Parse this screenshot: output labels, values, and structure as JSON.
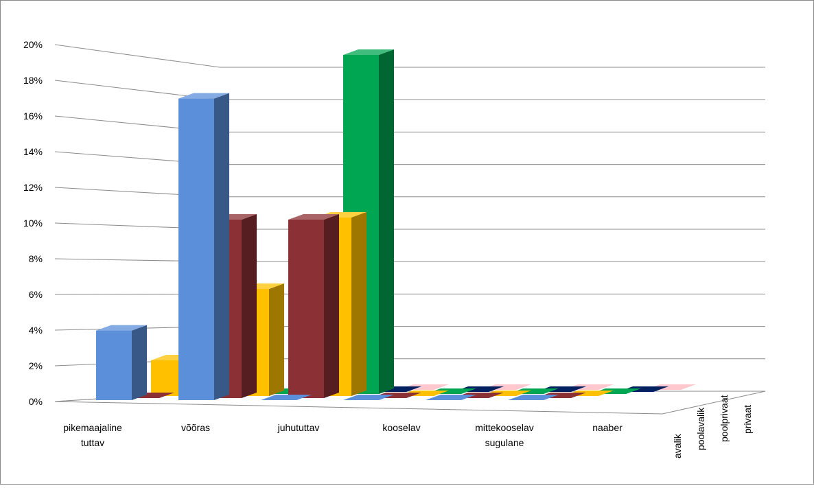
{
  "chart_data": {
    "type": "bar",
    "title": "",
    "xlabel": "",
    "ylabel": "",
    "ylim": [
      0,
      20
    ],
    "y_ticks": [
      "0%",
      "2%",
      "4%",
      "6%",
      "8%",
      "10%",
      "12%",
      "14%",
      "16%",
      "18%",
      "20%"
    ],
    "grid": true,
    "categories": [
      [
        "pikemaajaline",
        "tuttav"
      ],
      [
        "võõras"
      ],
      [
        "juhututtav"
      ],
      [
        "kooselav"
      ],
      [
        "mittekooselav",
        "sugulane"
      ],
      [
        "naaber"
      ]
    ],
    "depth_categories": [
      "avalik",
      "poolavalik",
      "poolprivaat",
      "privaat"
    ],
    "series": [
      {
        "color": "#5B8FD9",
        "values": [
          3.9,
          16.9,
          0,
          0,
          0,
          0
        ]
      },
      {
        "color": "#8B3034",
        "values": [
          0,
          10,
          10,
          0,
          0,
          0
        ]
      },
      {
        "color": "#FFC000",
        "values": [
          2,
          6,
          10,
          0,
          0,
          0
        ]
      },
      {
        "color": "#00A651",
        "values": [
          2,
          0,
          19,
          0,
          0,
          0
        ]
      },
      {
        "color": "#002060",
        "values": [
          2,
          0,
          0,
          0,
          0,
          0
        ]
      },
      {
        "color": "#FFC7CE",
        "values": [
          2.5,
          4,
          0,
          0,
          0,
          0
        ]
      }
    ]
  }
}
